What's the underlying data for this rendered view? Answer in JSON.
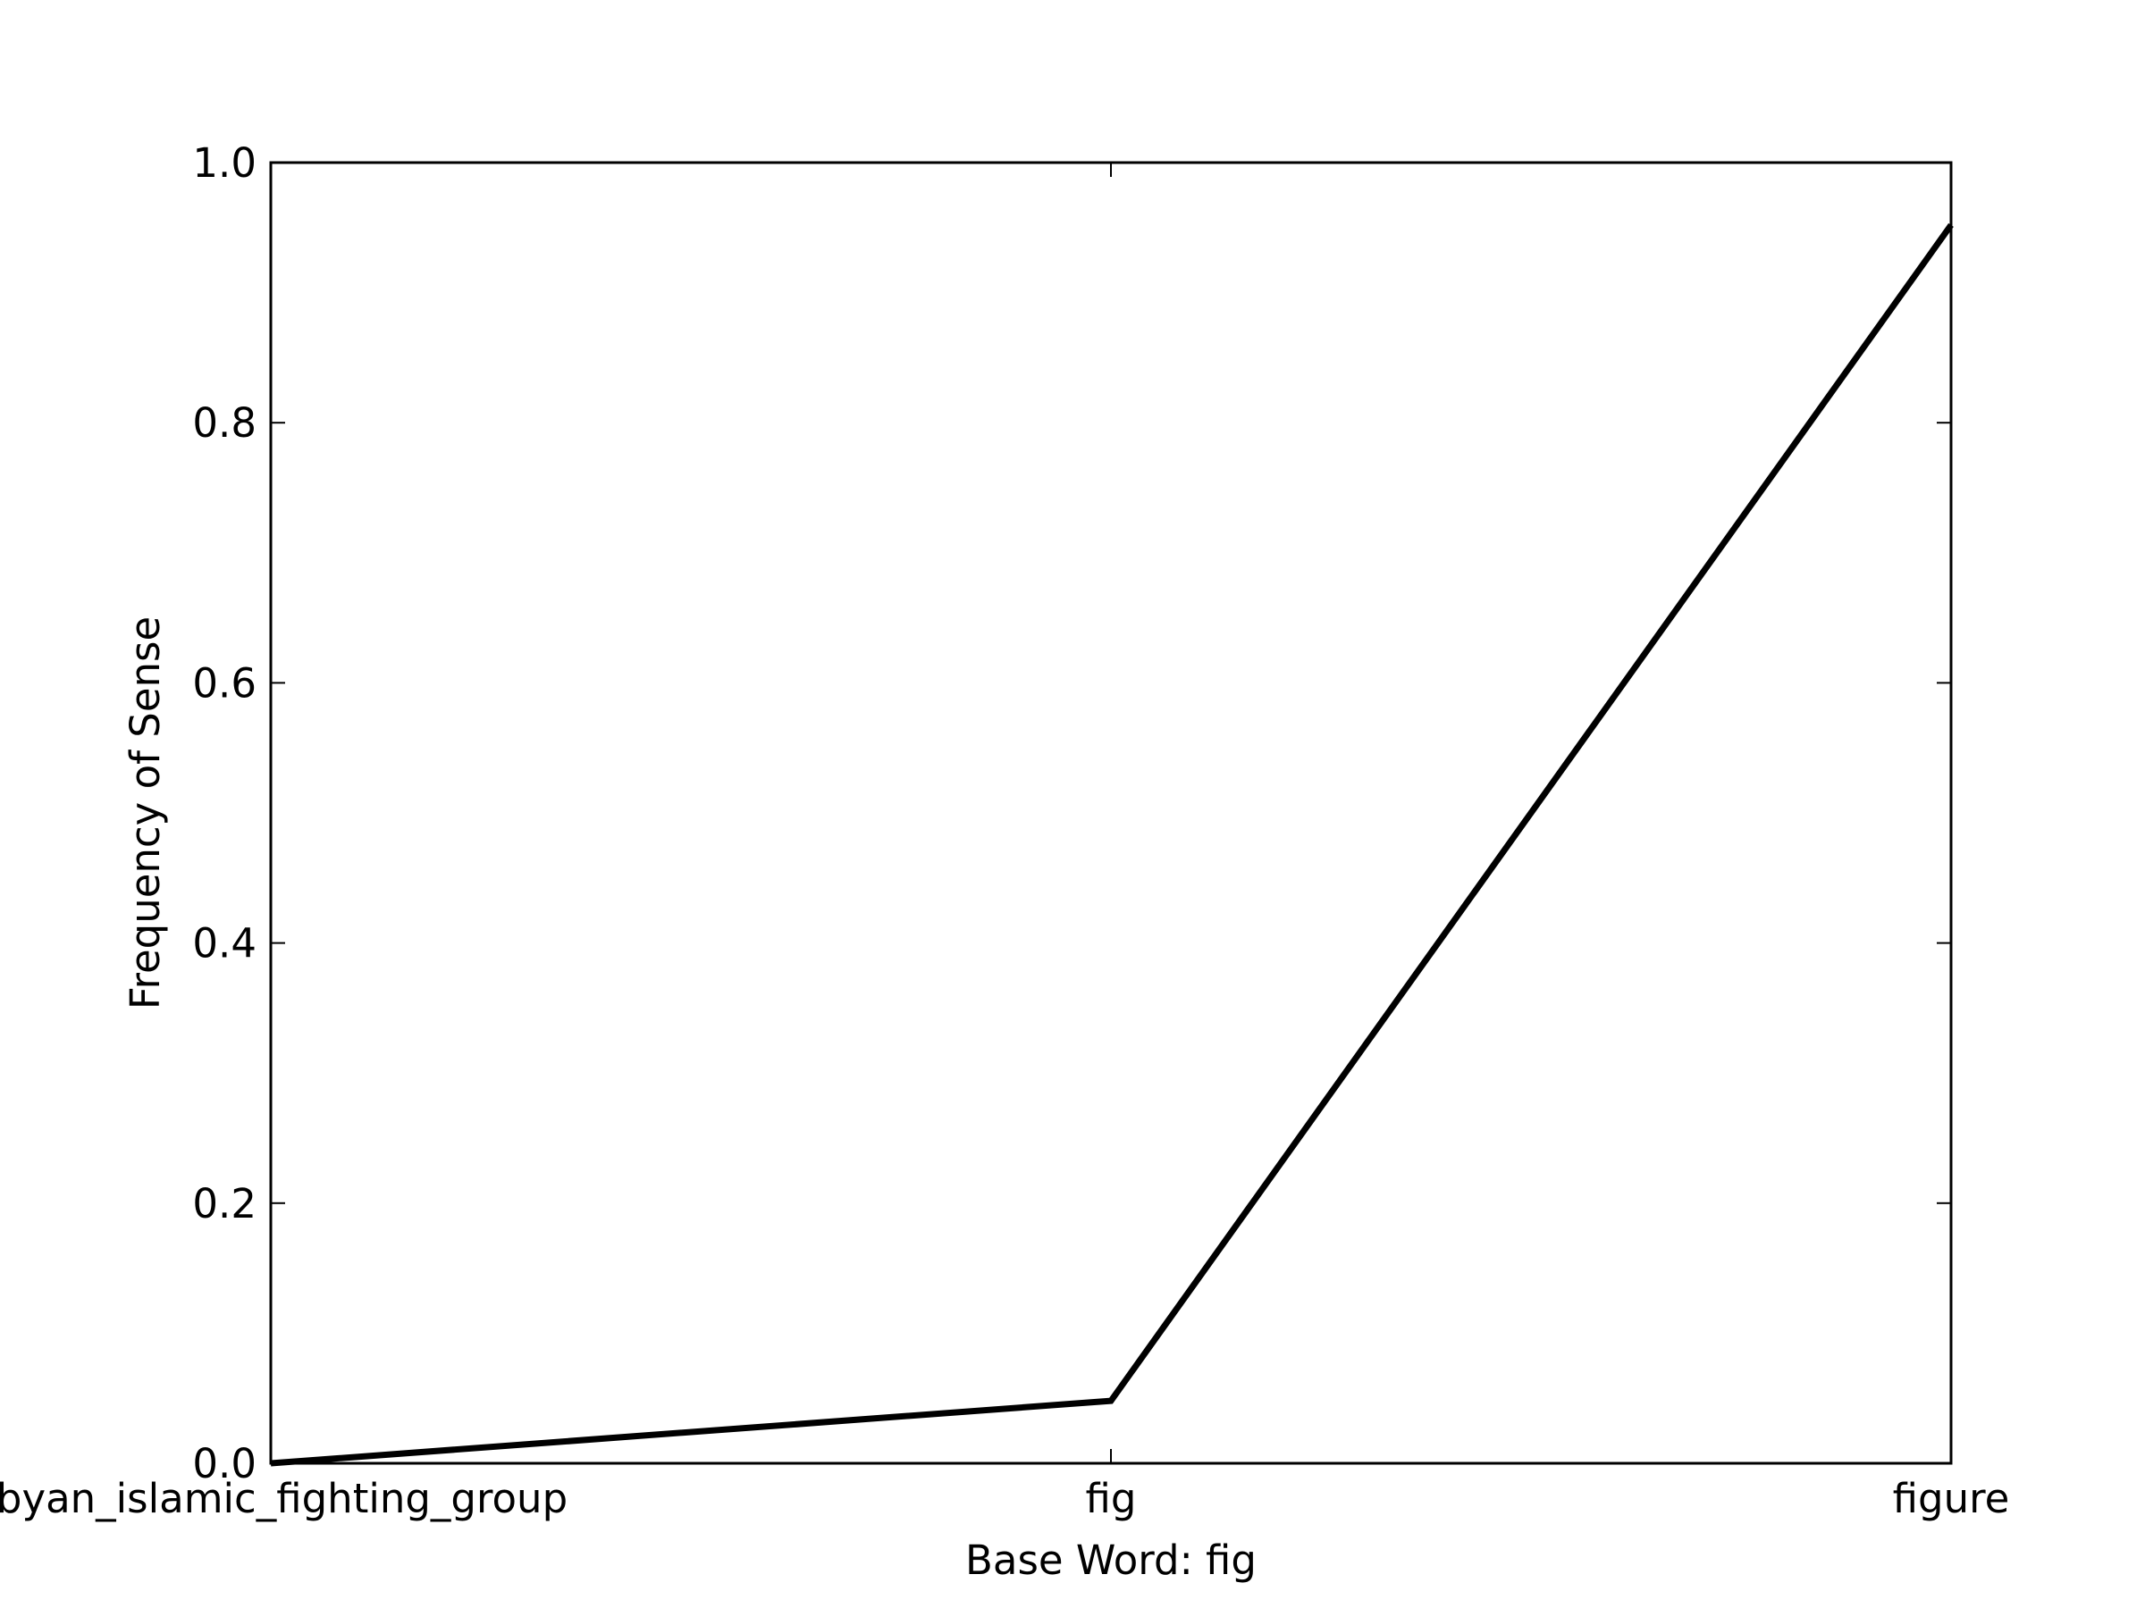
{
  "chart_data": {
    "type": "line",
    "title": "",
    "xlabel": "Base Word: fig",
    "ylabel": "Frequency of Sense",
    "categories": [
      "libyan_islamic_fighting_group",
      "fig",
      "figure"
    ],
    "series": [
      {
        "values": [
          0.0,
          0.048,
          0.952
        ]
      }
    ],
    "ylim": [
      0.0,
      1.0
    ],
    "yticks": [
      "0.0",
      "0.2",
      "0.4",
      "0.6",
      "0.8",
      "1.0"
    ],
    "grid": false,
    "line_color": "#000000"
  }
}
